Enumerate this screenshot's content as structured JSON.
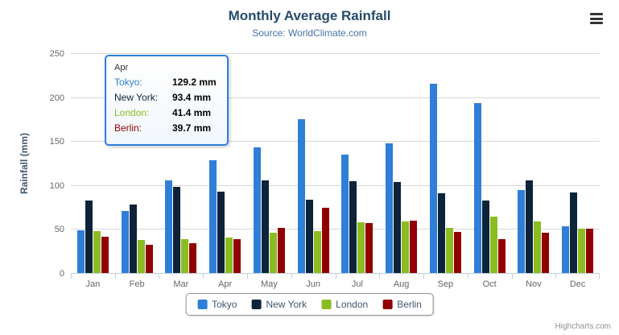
{
  "chart_data": {
    "type": "bar",
    "title": "Monthly Average Rainfall",
    "subtitle": "Source: WorldClimate.com",
    "categories": [
      "Jan",
      "Feb",
      "Mar",
      "Apr",
      "May",
      "Jun",
      "Jul",
      "Aug",
      "Sep",
      "Oct",
      "Nov",
      "Dec"
    ],
    "series": [
      {
        "name": "Tokyo",
        "color": "#2f7ed8",
        "values": [
          49.9,
          71.5,
          106.4,
          129.2,
          144.0,
          176.0,
          135.6,
          148.5,
          216.4,
          194.1,
          95.6,
          54.4
        ]
      },
      {
        "name": "New York",
        "color": "#0d233a",
        "values": [
          83.6,
          78.8,
          98.5,
          93.4,
          106.0,
          84.5,
          105.0,
          104.3,
          91.2,
          83.5,
          106.6,
          92.3
        ]
      },
      {
        "name": "London",
        "color": "#8bbc21",
        "values": [
          48.9,
          38.8,
          39.3,
          41.4,
          47.0,
          48.3,
          59.0,
          59.6,
          52.4,
          65.2,
          59.3,
          51.2
        ]
      },
      {
        "name": "Berlin",
        "color": "#910000",
        "values": [
          42.4,
          33.2,
          34.5,
          39.7,
          52.6,
          75.5,
          57.4,
          60.4,
          47.6,
          39.1,
          46.8,
          51.1
        ]
      }
    ],
    "xlabel": "",
    "ylabel": "Rainfall (mm)",
    "ylim": [
      0,
      250
    ],
    "yticks": [
      0,
      50,
      100,
      150,
      200,
      250
    ],
    "grid": true,
    "legend_position": "bottom"
  },
  "tooltip": {
    "header": "Apr",
    "rows": [
      {
        "label": "Tokyo:",
        "value": "129.2 mm",
        "color": "#2f7ed8"
      },
      {
        "label": "New York:",
        "value": "93.4 mm",
        "color": "#0d233a"
      },
      {
        "label": "London:",
        "value": "41.4 mm",
        "color": "#8bbc21"
      },
      {
        "label": "Berlin:",
        "value": "39.7 mm",
        "color": "#910000"
      }
    ]
  },
  "credits": "Highcharts.com"
}
